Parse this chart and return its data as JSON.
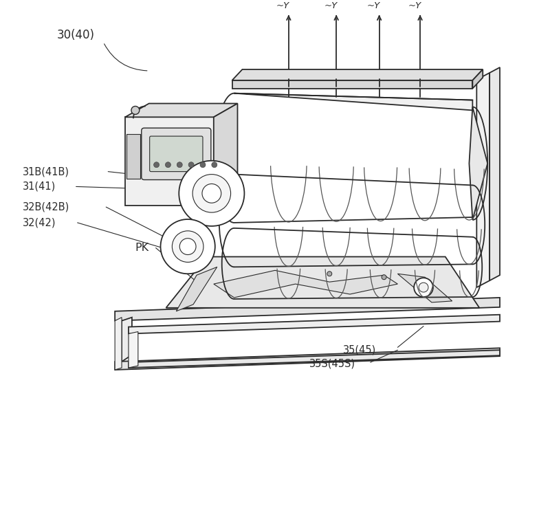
{
  "bg_color": "#ffffff",
  "line_color": "#2a2a2a",
  "labels": {
    "main": "30(40)",
    "31B": "31B(41B)",
    "31": "31(41)",
    "32B": "32B(42B)",
    "32": "32(42)",
    "PK": "PK",
    "35": "35(45)",
    "35S": "35S(45S)",
    "Y": "~Y"
  },
  "figsize": [
    8.0,
    7.55
  ],
  "dpi": 100
}
